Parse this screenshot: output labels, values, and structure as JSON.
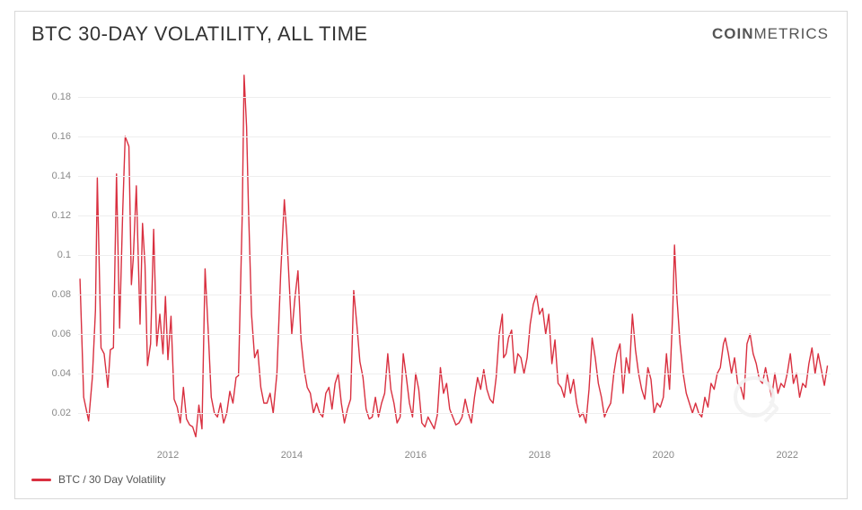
{
  "header": {
    "title": "BTC 30-DAY VOLATILITY, ALL TIME",
    "brand_bold": "COIN",
    "brand_thin": "METRICS"
  },
  "chart": {
    "type": "line",
    "line_color": "#d93040",
    "line_width": 1.4,
    "background_color": "#ffffff",
    "grid_color": "#eeeeee",
    "border_color": "#d8d8d8",
    "label_color": "#888888",
    "label_fontsize": 11,
    "title_fontsize": 22,
    "title_color": "#333333",
    "ylim": [
      0.005,
      0.195
    ],
    "yticks": [
      0.02,
      0.04,
      0.06,
      0.08,
      0.1,
      0.12,
      0.14,
      0.16,
      0.18
    ],
    "ytick_labels": [
      "0.02",
      "0.04",
      "0.06",
      "0.08",
      "0.1",
      "0.12",
      "0.14",
      "0.16",
      "0.18"
    ],
    "xlim": [
      2010.55,
      2022.7
    ],
    "xticks": [
      2012,
      2014,
      2016,
      2018,
      2020,
      2022
    ],
    "xtick_labels": [
      "2012",
      "2014",
      "2016",
      "2018",
      "2020",
      "2022"
    ],
    "series": [
      {
        "name": "BTC / 30 Day Volatility",
        "color": "#d93040",
        "points": [
          [
            2010.58,
            0.088
          ],
          [
            2010.64,
            0.028
          ],
          [
            2010.72,
            0.016
          ],
          [
            2010.78,
            0.038
          ],
          [
            2010.83,
            0.072
          ],
          [
            2010.86,
            0.139
          ],
          [
            2010.92,
            0.053
          ],
          [
            2010.97,
            0.05
          ],
          [
            2011.03,
            0.033
          ],
          [
            2011.07,
            0.052
          ],
          [
            2011.12,
            0.053
          ],
          [
            2011.17,
            0.141
          ],
          [
            2011.22,
            0.063
          ],
          [
            2011.27,
            0.122
          ],
          [
            2011.31,
            0.16
          ],
          [
            2011.37,
            0.155
          ],
          [
            2011.41,
            0.085
          ],
          [
            2011.44,
            0.098
          ],
          [
            2011.49,
            0.135
          ],
          [
            2011.55,
            0.065
          ],
          [
            2011.59,
            0.116
          ],
          [
            2011.63,
            0.095
          ],
          [
            2011.67,
            0.044
          ],
          [
            2011.72,
            0.055
          ],
          [
            2011.77,
            0.113
          ],
          [
            2011.82,
            0.054
          ],
          [
            2011.87,
            0.07
          ],
          [
            2011.92,
            0.05
          ],
          [
            2011.96,
            0.079
          ],
          [
            2012.0,
            0.047
          ],
          [
            2012.05,
            0.069
          ],
          [
            2012.1,
            0.027
          ],
          [
            2012.15,
            0.023
          ],
          [
            2012.2,
            0.015
          ],
          [
            2012.25,
            0.033
          ],
          [
            2012.3,
            0.017
          ],
          [
            2012.35,
            0.014
          ],
          [
            2012.4,
            0.013
          ],
          [
            2012.45,
            0.008
          ],
          [
            2012.5,
            0.024
          ],
          [
            2012.55,
            0.012
          ],
          [
            2012.6,
            0.093
          ],
          [
            2012.65,
            0.062
          ],
          [
            2012.7,
            0.028
          ],
          [
            2012.75,
            0.02
          ],
          [
            2012.8,
            0.018
          ],
          [
            2012.85,
            0.025
          ],
          [
            2012.9,
            0.015
          ],
          [
            2012.95,
            0.02
          ],
          [
            2013.0,
            0.031
          ],
          [
            2013.05,
            0.025
          ],
          [
            2013.1,
            0.038
          ],
          [
            2013.14,
            0.039
          ],
          [
            2013.17,
            0.08
          ],
          [
            2013.2,
            0.12
          ],
          [
            2013.23,
            0.191
          ],
          [
            2013.27,
            0.165
          ],
          [
            2013.3,
            0.125
          ],
          [
            2013.35,
            0.07
          ],
          [
            2013.4,
            0.048
          ],
          [
            2013.45,
            0.052
          ],
          [
            2013.5,
            0.033
          ],
          [
            2013.55,
            0.025
          ],
          [
            2013.6,
            0.025
          ],
          [
            2013.65,
            0.03
          ],
          [
            2013.7,
            0.02
          ],
          [
            2013.76,
            0.04
          ],
          [
            2013.82,
            0.09
          ],
          [
            2013.88,
            0.128
          ],
          [
            2013.92,
            0.11
          ],
          [
            2013.96,
            0.085
          ],
          [
            2014.0,
            0.06
          ],
          [
            2014.05,
            0.078
          ],
          [
            2014.1,
            0.092
          ],
          [
            2014.15,
            0.057
          ],
          [
            2014.2,
            0.042
          ],
          [
            2014.25,
            0.033
          ],
          [
            2014.3,
            0.03
          ],
          [
            2014.35,
            0.02
          ],
          [
            2014.4,
            0.025
          ],
          [
            2014.45,
            0.02
          ],
          [
            2014.5,
            0.018
          ],
          [
            2014.55,
            0.03
          ],
          [
            2014.6,
            0.033
          ],
          [
            2014.65,
            0.022
          ],
          [
            2014.7,
            0.035
          ],
          [
            2014.75,
            0.04
          ],
          [
            2014.8,
            0.025
          ],
          [
            2014.85,
            0.015
          ],
          [
            2014.9,
            0.022
          ],
          [
            2014.95,
            0.027
          ],
          [
            2015.0,
            0.082
          ],
          [
            2015.05,
            0.065
          ],
          [
            2015.1,
            0.046
          ],
          [
            2015.15,
            0.038
          ],
          [
            2015.2,
            0.022
          ],
          [
            2015.25,
            0.017
          ],
          [
            2015.3,
            0.018
          ],
          [
            2015.35,
            0.028
          ],
          [
            2015.4,
            0.018
          ],
          [
            2015.45,
            0.025
          ],
          [
            2015.5,
            0.03
          ],
          [
            2015.55,
            0.05
          ],
          [
            2015.6,
            0.032
          ],
          [
            2015.65,
            0.025
          ],
          [
            2015.7,
            0.015
          ],
          [
            2015.75,
            0.018
          ],
          [
            2015.8,
            0.05
          ],
          [
            2015.85,
            0.038
          ],
          [
            2015.9,
            0.025
          ],
          [
            2015.95,
            0.018
          ],
          [
            2016.0,
            0.04
          ],
          [
            2016.05,
            0.032
          ],
          [
            2016.1,
            0.015
          ],
          [
            2016.15,
            0.013
          ],
          [
            2016.2,
            0.018
          ],
          [
            2016.25,
            0.015
          ],
          [
            2016.3,
            0.012
          ],
          [
            2016.35,
            0.019
          ],
          [
            2016.4,
            0.043
          ],
          [
            2016.45,
            0.03
          ],
          [
            2016.5,
            0.035
          ],
          [
            2016.55,
            0.022
          ],
          [
            2016.6,
            0.018
          ],
          [
            2016.65,
            0.014
          ],
          [
            2016.7,
            0.015
          ],
          [
            2016.75,
            0.018
          ],
          [
            2016.8,
            0.027
          ],
          [
            2016.85,
            0.02
          ],
          [
            2016.9,
            0.015
          ],
          [
            2016.95,
            0.028
          ],
          [
            2017.0,
            0.038
          ],
          [
            2017.05,
            0.032
          ],
          [
            2017.1,
            0.042
          ],
          [
            2017.15,
            0.032
          ],
          [
            2017.2,
            0.027
          ],
          [
            2017.25,
            0.025
          ],
          [
            2017.3,
            0.038
          ],
          [
            2017.35,
            0.06
          ],
          [
            2017.4,
            0.07
          ],
          [
            2017.42,
            0.048
          ],
          [
            2017.46,
            0.05
          ],
          [
            2017.5,
            0.058
          ],
          [
            2017.55,
            0.062
          ],
          [
            2017.6,
            0.04
          ],
          [
            2017.65,
            0.05
          ],
          [
            2017.7,
            0.048
          ],
          [
            2017.75,
            0.04
          ],
          [
            2017.8,
            0.048
          ],
          [
            2017.85,
            0.065
          ],
          [
            2017.9,
            0.075
          ],
          [
            2017.95,
            0.08
          ],
          [
            2018.0,
            0.07
          ],
          [
            2018.05,
            0.073
          ],
          [
            2018.1,
            0.06
          ],
          [
            2018.15,
            0.07
          ],
          [
            2018.2,
            0.045
          ],
          [
            2018.25,
            0.057
          ],
          [
            2018.3,
            0.035
          ],
          [
            2018.35,
            0.033
          ],
          [
            2018.4,
            0.028
          ],
          [
            2018.45,
            0.04
          ],
          [
            2018.5,
            0.03
          ],
          [
            2018.55,
            0.037
          ],
          [
            2018.6,
            0.025
          ],
          [
            2018.65,
            0.018
          ],
          [
            2018.7,
            0.02
          ],
          [
            2018.75,
            0.015
          ],
          [
            2018.8,
            0.032
          ],
          [
            2018.85,
            0.058
          ],
          [
            2018.9,
            0.048
          ],
          [
            2018.95,
            0.035
          ],
          [
            2019.0,
            0.028
          ],
          [
            2019.05,
            0.018
          ],
          [
            2019.1,
            0.022
          ],
          [
            2019.15,
            0.025
          ],
          [
            2019.2,
            0.04
          ],
          [
            2019.25,
            0.05
          ],
          [
            2019.3,
            0.055
          ],
          [
            2019.35,
            0.03
          ],
          [
            2019.4,
            0.048
          ],
          [
            2019.45,
            0.04
          ],
          [
            2019.5,
            0.07
          ],
          [
            2019.55,
            0.052
          ],
          [
            2019.6,
            0.04
          ],
          [
            2019.65,
            0.032
          ],
          [
            2019.7,
            0.027
          ],
          [
            2019.75,
            0.043
          ],
          [
            2019.8,
            0.037
          ],
          [
            2019.85,
            0.02
          ],
          [
            2019.9,
            0.025
          ],
          [
            2019.95,
            0.023
          ],
          [
            2020.0,
            0.028
          ],
          [
            2020.05,
            0.05
          ],
          [
            2020.1,
            0.032
          ],
          [
            2020.15,
            0.07
          ],
          [
            2020.18,
            0.105
          ],
          [
            2020.22,
            0.078
          ],
          [
            2020.27,
            0.055
          ],
          [
            2020.32,
            0.04
          ],
          [
            2020.37,
            0.03
          ],
          [
            2020.42,
            0.025
          ],
          [
            2020.47,
            0.02
          ],
          [
            2020.52,
            0.025
          ],
          [
            2020.57,
            0.02
          ],
          [
            2020.62,
            0.018
          ],
          [
            2020.67,
            0.028
          ],
          [
            2020.72,
            0.023
          ],
          [
            2020.77,
            0.035
          ],
          [
            2020.82,
            0.032
          ],
          [
            2020.87,
            0.04
          ],
          [
            2020.92,
            0.043
          ],
          [
            2020.97,
            0.055
          ],
          [
            2021.0,
            0.058
          ],
          [
            2021.05,
            0.05
          ],
          [
            2021.1,
            0.04
          ],
          [
            2021.15,
            0.048
          ],
          [
            2021.2,
            0.035
          ],
          [
            2021.25,
            0.033
          ],
          [
            2021.3,
            0.027
          ],
          [
            2021.35,
            0.055
          ],
          [
            2021.4,
            0.06
          ],
          [
            2021.45,
            0.05
          ],
          [
            2021.5,
            0.045
          ],
          [
            2021.55,
            0.037
          ],
          [
            2021.6,
            0.035
          ],
          [
            2021.65,
            0.043
          ],
          [
            2021.7,
            0.035
          ],
          [
            2021.75,
            0.028
          ],
          [
            2021.8,
            0.04
          ],
          [
            2021.85,
            0.03
          ],
          [
            2021.9,
            0.035
          ],
          [
            2021.95,
            0.033
          ],
          [
            2022.0,
            0.04
          ],
          [
            2022.05,
            0.05
          ],
          [
            2022.1,
            0.035
          ],
          [
            2022.15,
            0.04
          ],
          [
            2022.2,
            0.028
          ],
          [
            2022.25,
            0.035
          ],
          [
            2022.3,
            0.033
          ],
          [
            2022.35,
            0.045
          ],
          [
            2022.4,
            0.053
          ],
          [
            2022.45,
            0.04
          ],
          [
            2022.5,
            0.05
          ],
          [
            2022.55,
            0.042
          ],
          [
            2022.6,
            0.034
          ],
          [
            2022.65,
            0.044
          ]
        ]
      }
    ]
  },
  "legend": {
    "items": [
      {
        "label": "BTC / 30 Day Volatility",
        "color": "#d93040"
      }
    ]
  }
}
